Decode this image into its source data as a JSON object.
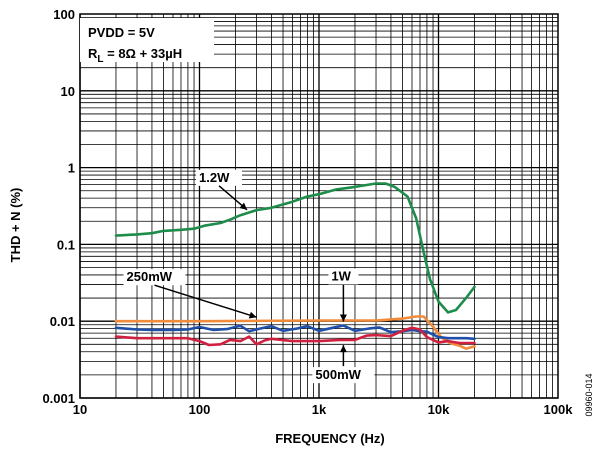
{
  "chart_data": {
    "type": "line",
    "xlabel": "FREQUENCY (Hz)",
    "ylabel": "THD + N (%)",
    "xscale": "log",
    "yscale": "log",
    "xlim": [
      10,
      100000
    ],
    "ylim": [
      0.001,
      100
    ],
    "grid": true,
    "x_ticks": [
      {
        "value": 10,
        "label": "10"
      },
      {
        "value": 100,
        "label": "100"
      },
      {
        "value": 1000,
        "label": "1k"
      },
      {
        "value": 10000,
        "label": "10k"
      },
      {
        "value": 100000,
        "label": "100k"
      }
    ],
    "y_ticks": [
      {
        "value": 100,
        "label": "100"
      },
      {
        "value": 10,
        "label": "10"
      },
      {
        "value": 1,
        "label": "1"
      },
      {
        "value": 0.1,
        "label": "0.1"
      },
      {
        "value": 0.01,
        "label": "0.01"
      },
      {
        "value": 0.001,
        "label": "0.001"
      }
    ],
    "conditions": {
      "line1": "PVDD = 5V",
      "line2_prefix": "R",
      "line2_sub": "L",
      "line2_suffix": " = 8Ω + 33µH"
    },
    "series": [
      {
        "name": "1.2W",
        "color": "#1e8c4a",
        "label_anchor": {
          "x": 250,
          "y": 0.25
        },
        "points": [
          [
            20,
            0.13
          ],
          [
            30,
            0.135
          ],
          [
            40,
            0.14
          ],
          [
            50,
            0.15
          ],
          [
            70,
            0.155
          ],
          [
            90,
            0.16
          ],
          [
            110,
            0.175
          ],
          [
            150,
            0.19
          ],
          [
            180,
            0.21
          ],
          [
            220,
            0.24
          ],
          [
            300,
            0.28
          ],
          [
            400,
            0.3
          ],
          [
            600,
            0.36
          ],
          [
            800,
            0.42
          ],
          [
            1000,
            0.45
          ],
          [
            1400,
            0.52
          ],
          [
            2000,
            0.56
          ],
          [
            3000,
            0.62
          ],
          [
            3600,
            0.62
          ],
          [
            4300,
            0.56
          ],
          [
            5500,
            0.42
          ],
          [
            6500,
            0.22
          ],
          [
            7500,
            0.08
          ],
          [
            8500,
            0.035
          ],
          [
            10000,
            0.018
          ],
          [
            12000,
            0.013
          ],
          [
            14000,
            0.014
          ],
          [
            17000,
            0.02
          ],
          [
            20000,
            0.028
          ]
        ]
      },
      {
        "name": "250mW",
        "color": "#f08c3c",
        "label_anchor": {
          "x": 300,
          "y": 0.01
        },
        "points": [
          [
            20,
            0.01
          ],
          [
            100,
            0.01
          ],
          [
            1000,
            0.0102
          ],
          [
            3000,
            0.0102
          ],
          [
            5000,
            0.0108
          ],
          [
            6500,
            0.0115
          ],
          [
            7500,
            0.0115
          ],
          [
            9000,
            0.0085
          ],
          [
            10500,
            0.0062
          ],
          [
            12500,
            0.0052
          ],
          [
            15000,
            0.0048
          ],
          [
            17000,
            0.0044
          ],
          [
            20000,
            0.0047
          ]
        ]
      },
      {
        "name": "1W",
        "color": "#1f4fa8",
        "label_anchor": {
          "x": 1600,
          "y": 0.0088
        },
        "points": [
          [
            20,
            0.0082
          ],
          [
            30,
            0.0078
          ],
          [
            40,
            0.0077
          ],
          [
            60,
            0.0077
          ],
          [
            80,
            0.0078
          ],
          [
            100,
            0.0084
          ],
          [
            130,
            0.0077
          ],
          [
            170,
            0.0079
          ],
          [
            220,
            0.0087
          ],
          [
            260,
            0.0074
          ],
          [
            320,
            0.008
          ],
          [
            400,
            0.0086
          ],
          [
            500,
            0.0075
          ],
          [
            650,
            0.008
          ],
          [
            800,
            0.0086
          ],
          [
            1000,
            0.0075
          ],
          [
            1300,
            0.0082
          ],
          [
            1600,
            0.0088
          ],
          [
            2000,
            0.0075
          ],
          [
            2600,
            0.008
          ],
          [
            3200,
            0.0083
          ],
          [
            4000,
            0.0072
          ],
          [
            5000,
            0.0074
          ],
          [
            6000,
            0.0077
          ],
          [
            7000,
            0.0074
          ],
          [
            8000,
            0.0073
          ],
          [
            9000,
            0.0067
          ],
          [
            10000,
            0.0062
          ],
          [
            12000,
            0.006
          ],
          [
            14000,
            0.006
          ],
          [
            17000,
            0.006
          ],
          [
            20000,
            0.0059
          ]
        ]
      },
      {
        "name": "500mW",
        "color": "#d02040",
        "label_anchor": {
          "x": 1600,
          "y": 0.0055
        },
        "points": [
          [
            20,
            0.0063
          ],
          [
            30,
            0.006
          ],
          [
            50,
            0.006
          ],
          [
            80,
            0.006
          ],
          [
            100,
            0.0055
          ],
          [
            120,
            0.0049
          ],
          [
            150,
            0.005
          ],
          [
            180,
            0.0057
          ],
          [
            220,
            0.0055
          ],
          [
            260,
            0.0063
          ],
          [
            300,
            0.005
          ],
          [
            350,
            0.0056
          ],
          [
            400,
            0.0059
          ],
          [
            600,
            0.0055
          ],
          [
            1000,
            0.0055
          ],
          [
            1500,
            0.0057
          ],
          [
            2000,
            0.0057
          ],
          [
            2500,
            0.0065
          ],
          [
            3000,
            0.0066
          ],
          [
            4000,
            0.0064
          ],
          [
            5000,
            0.0075
          ],
          [
            6000,
            0.0082
          ],
          [
            7000,
            0.0078
          ],
          [
            8000,
            0.0062
          ],
          [
            9000,
            0.0057
          ],
          [
            10000,
            0.0053
          ],
          [
            12000,
            0.0055
          ],
          [
            15000,
            0.0052
          ],
          [
            20000,
            0.0052
          ]
        ]
      }
    ]
  },
  "figure_id": "09960-014"
}
